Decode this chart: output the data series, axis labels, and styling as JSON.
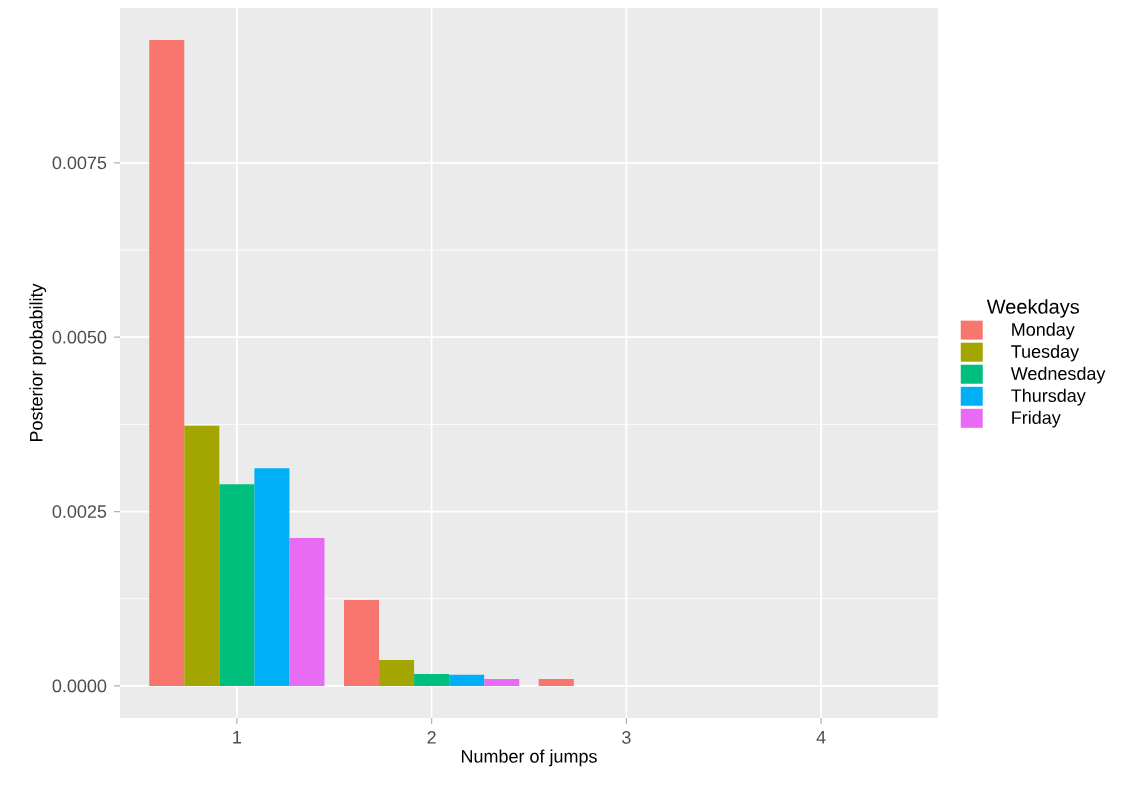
{
  "chart_data": {
    "type": "bar",
    "xlabel": "Number of jumps",
    "ylabel": "Posterior probability",
    "legend_title": "Weekdays",
    "categories": [
      "1",
      "2",
      "3",
      "4"
    ],
    "series": [
      {
        "name": "Monday",
        "color": "#f8766d",
        "values": [
          0.00926,
          0.00123,
          0.0001,
          0
        ]
      },
      {
        "name": "Tuesday",
        "color": "#a3a500",
        "values": [
          0.00373,
          0.00037,
          0,
          0
        ]
      },
      {
        "name": "Wednesday",
        "color": "#00bf7d",
        "values": [
          0.00289,
          0.00017,
          0,
          0
        ]
      },
      {
        "name": "Thursday",
        "color": "#00b0f6",
        "values": [
          0.00312,
          0.00016,
          0,
          0
        ]
      },
      {
        "name": "Friday",
        "color": "#e76bf3",
        "values": [
          0.00212,
          0.0001,
          0,
          0
        ]
      }
    ],
    "ylim": [
      -0.00046,
      0.00972
    ],
    "yticks": [
      {
        "value": 0,
        "label": "0.0000"
      },
      {
        "value": 0.0025,
        "label": "0.0025"
      },
      {
        "value": 0.005,
        "label": "0.0050"
      },
      {
        "value": 0.0075,
        "label": "0.0075"
      }
    ],
    "grid": true,
    "legend": "right"
  }
}
